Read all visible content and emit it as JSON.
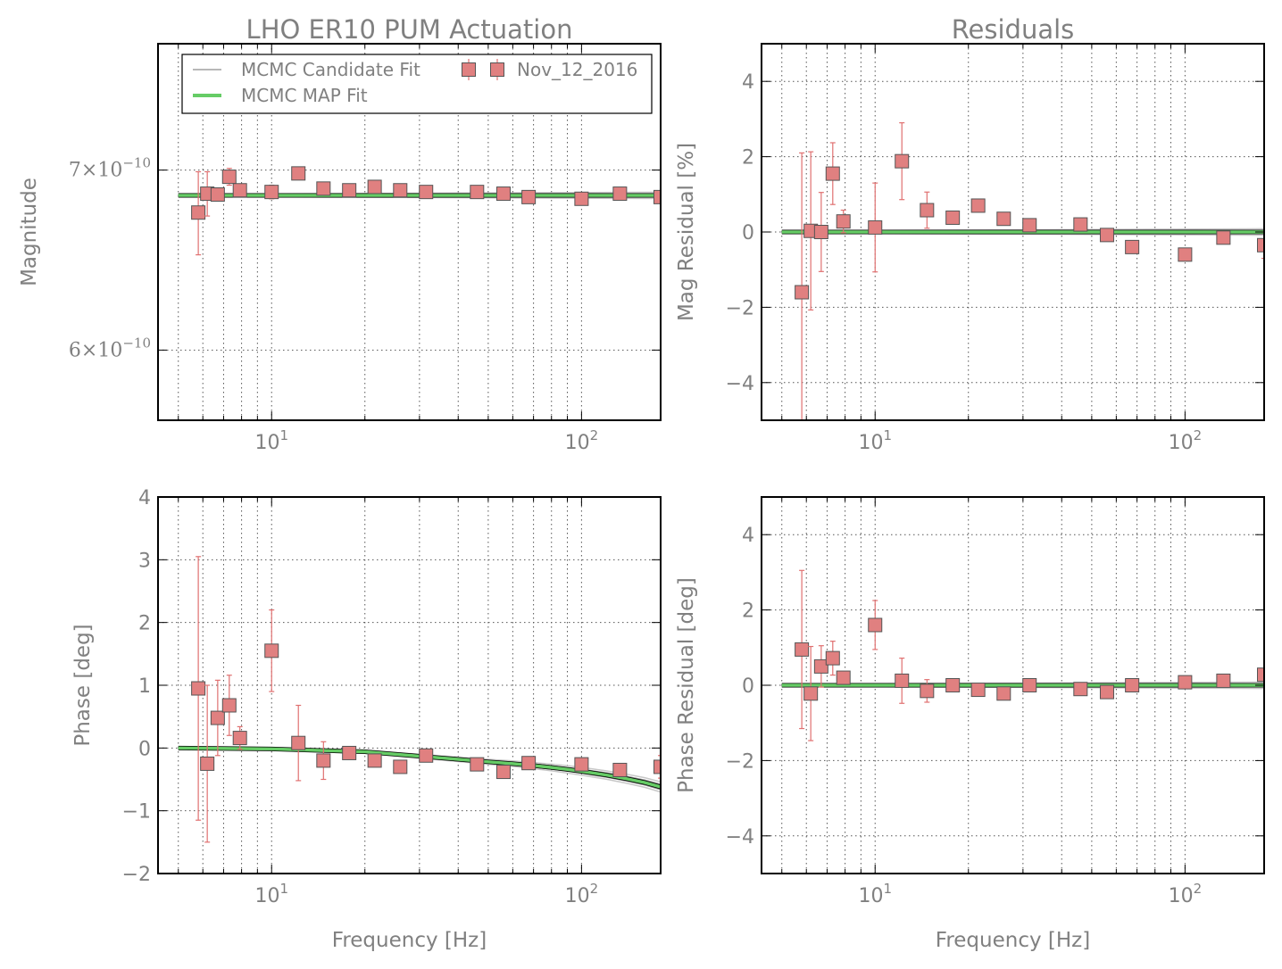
{
  "chart_data": [
    {
      "type": "line",
      "panel": "magnitude",
      "title": "LHO ER10 PUM Actuation",
      "xlabel": "",
      "ylabel": "Magnitude",
      "xscale": "log",
      "yscale": "log",
      "xlim": [
        4.3,
        180
      ],
      "ylim": [
        5.65e-10,
        7.8e-10
      ],
      "xticks": [
        {
          "value": 10,
          "base": "10",
          "exp": "1"
        },
        {
          "value": 100,
          "base": "10",
          "exp": "2"
        }
      ],
      "yticks": [
        {
          "value": 7e-10,
          "mant": "7",
          "exp": "−10"
        },
        {
          "value": 6e-10,
          "mant": "6",
          "exp": "−10"
        }
      ],
      "grid": true,
      "legend": {
        "placement": "top",
        "entries": [
          {
            "label": "MCMC Candidate Fit",
            "style": "line",
            "color": "#a0a0a0"
          },
          {
            "label": "MCMC MAP Fit",
            "style": "line",
            "color": "#66cc66"
          },
          {
            "label": "Nov_12_2016",
            "style": "marker",
            "color": "#e08080"
          }
        ]
      },
      "series": [
        {
          "name": "MCMC MAP Fit",
          "kind": "fit",
          "x": [
            5,
            180
          ],
          "y": [
            6.85e-10,
            6.85e-10
          ]
        },
        {
          "name": "Nov_12_2016",
          "kind": "measurement",
          "x": [
            5.8,
            6.2,
            6.7,
            7.3,
            7.9,
            10,
            12.2,
            14.7,
            17.8,
            21.5,
            26,
            31.5,
            46,
            56,
            67.5,
            100,
            133,
            180
          ],
          "y": [
            6.75e-10,
            6.86e-10,
            6.855e-10,
            6.96e-10,
            6.88e-10,
            6.87e-10,
            6.98e-10,
            6.89e-10,
            6.88e-10,
            6.9e-10,
            6.88e-10,
            6.87e-10,
            6.87e-10,
            6.86e-10,
            6.84e-10,
            6.83e-10,
            6.86e-10,
            6.84e-10
          ],
          "err": [
            2.4e-11,
            1.3e-11,
            3e-12,
            5e-12,
            2e-12,
            4e-12,
            3e-12,
            1e-12,
            1e-12,
            1e-12,
            1e-12,
            1e-12,
            1e-12,
            1e-12,
            1e-12,
            1e-12,
            1e-12,
            1e-12
          ]
        }
      ]
    },
    {
      "type": "line",
      "panel": "magnitude-residual",
      "title": "Residuals",
      "xlabel": "",
      "ylabel": "Mag Residual [%]",
      "xscale": "log",
      "xlim": [
        4.3,
        180
      ],
      "ylim": [
        -5,
        5
      ],
      "xticks": [
        {
          "value": 10,
          "base": "10",
          "exp": "1"
        },
        {
          "value": 100,
          "base": "10",
          "exp": "2"
        }
      ],
      "yticks": [
        {
          "value": 4,
          "label": "4"
        },
        {
          "value": 2,
          "label": "2"
        },
        {
          "value": 0,
          "label": "0"
        },
        {
          "value": -2,
          "label": "−2"
        },
        {
          "value": -4,
          "label": "−4"
        }
      ],
      "grid": true,
      "series": [
        {
          "name": "MCMC MAP Fit",
          "kind": "fit",
          "x": [
            5,
            180
          ],
          "y": [
            0,
            0
          ]
        },
        {
          "name": "Nov_12_2016",
          "kind": "measurement",
          "x": [
            5.8,
            6.2,
            6.7,
            7.3,
            7.9,
            10,
            12.2,
            14.7,
            17.8,
            21.5,
            26,
            31.5,
            46,
            56,
            67.5,
            100,
            133,
            180
          ],
          "y": [
            -1.6,
            0.03,
            0.0,
            1.55,
            0.28,
            0.12,
            1.88,
            0.58,
            0.38,
            0.7,
            0.35,
            0.18,
            0.2,
            -0.08,
            -0.4,
            -0.6,
            -0.15,
            -0.35
          ],
          "err": [
            3.7,
            2.1,
            1.05,
            0.82,
            0.3,
            1.18,
            1.02,
            0.48,
            0.05,
            0.05,
            0.05,
            0.05,
            0.05,
            0.05,
            0.05,
            0.05,
            0.1,
            0.35
          ]
        }
      ]
    },
    {
      "type": "line",
      "panel": "phase",
      "title": "",
      "xlabel": "Frequency [Hz]",
      "ylabel": "Phase [deg]",
      "xscale": "log",
      "xlim": [
        4.3,
        180
      ],
      "ylim": [
        -2,
        4
      ],
      "xticks": [
        {
          "value": 10,
          "base": "10",
          "exp": "1"
        },
        {
          "value": 100,
          "base": "10",
          "exp": "2"
        }
      ],
      "yticks": [
        {
          "value": 4,
          "label": "4"
        },
        {
          "value": 3,
          "label": "3"
        },
        {
          "value": 2,
          "label": "2"
        },
        {
          "value": 1,
          "label": "1"
        },
        {
          "value": 0,
          "label": "0"
        },
        {
          "value": -1,
          "label": "−1"
        },
        {
          "value": -2,
          "label": "−2"
        }
      ],
      "grid": true,
      "series": [
        {
          "name": "MCMC MAP Fit",
          "kind": "fit",
          "x": [
            5,
            10,
            20,
            30,
            40,
            50,
            60,
            70,
            80,
            90,
            100,
            120,
            140,
            160,
            180
          ],
          "y": [
            0,
            -0.015,
            -0.06,
            -0.13,
            -0.18,
            -0.22,
            -0.25,
            -0.28,
            -0.31,
            -0.34,
            -0.37,
            -0.43,
            -0.49,
            -0.55,
            -0.62
          ]
        },
        {
          "name": "Nov_12_2016",
          "kind": "measurement",
          "x": [
            5.8,
            6.2,
            6.7,
            7.3,
            7.9,
            10,
            12.2,
            14.7,
            17.8,
            21.5,
            26,
            31.5,
            46,
            56,
            67.5,
            100,
            133,
            180
          ],
          "y": [
            0.95,
            -0.25,
            0.48,
            0.68,
            0.16,
            1.55,
            0.08,
            -0.2,
            -0.08,
            -0.2,
            -0.3,
            -0.12,
            -0.26,
            -0.38,
            -0.24,
            -0.26,
            -0.35,
            -0.3
          ],
          "err": [
            2.1,
            1.25,
            0.6,
            0.48,
            0.18,
            0.65,
            0.6,
            0.3,
            0.05,
            0.05,
            0.05,
            0.05,
            0.05,
            0.05,
            0.05,
            0.05,
            0.05,
            0.18
          ]
        }
      ]
    },
    {
      "type": "line",
      "panel": "phase-residual",
      "title": "",
      "xlabel": "Frequency [Hz]",
      "ylabel": "Phase Residual [deg]",
      "xscale": "log",
      "xlim": [
        4.3,
        180
      ],
      "ylim": [
        -5,
        5
      ],
      "xticks": [
        {
          "value": 10,
          "base": "10",
          "exp": "1"
        },
        {
          "value": 100,
          "base": "10",
          "exp": "2"
        }
      ],
      "yticks": [
        {
          "value": 4,
          "label": "4"
        },
        {
          "value": 2,
          "label": "2"
        },
        {
          "value": 0,
          "label": "0"
        },
        {
          "value": -2,
          "label": "−2"
        },
        {
          "value": -4,
          "label": "−4"
        }
      ],
      "grid": true,
      "series": [
        {
          "name": "MCMC MAP Fit",
          "kind": "fit",
          "x": [
            5,
            180
          ],
          "y": [
            0,
            0
          ]
        },
        {
          "name": "Nov_12_2016",
          "kind": "measurement",
          "x": [
            5.8,
            6.2,
            6.7,
            7.3,
            7.9,
            10,
            12.2,
            14.7,
            17.8,
            21.5,
            26,
            31.5,
            46,
            56,
            67.5,
            100,
            133,
            180
          ],
          "y": [
            0.95,
            -0.22,
            0.5,
            0.72,
            0.2,
            1.6,
            0.12,
            -0.15,
            0.0,
            -0.12,
            -0.22,
            0.0,
            -0.1,
            -0.18,
            0.0,
            0.08,
            0.12,
            0.28
          ],
          "err": [
            2.1,
            1.25,
            0.55,
            0.45,
            0.15,
            0.65,
            0.6,
            0.3,
            0.05,
            0.05,
            0.05,
            0.05,
            0.05,
            0.05,
            0.05,
            0.05,
            0.05,
            0.05
          ]
        }
      ]
    }
  ]
}
